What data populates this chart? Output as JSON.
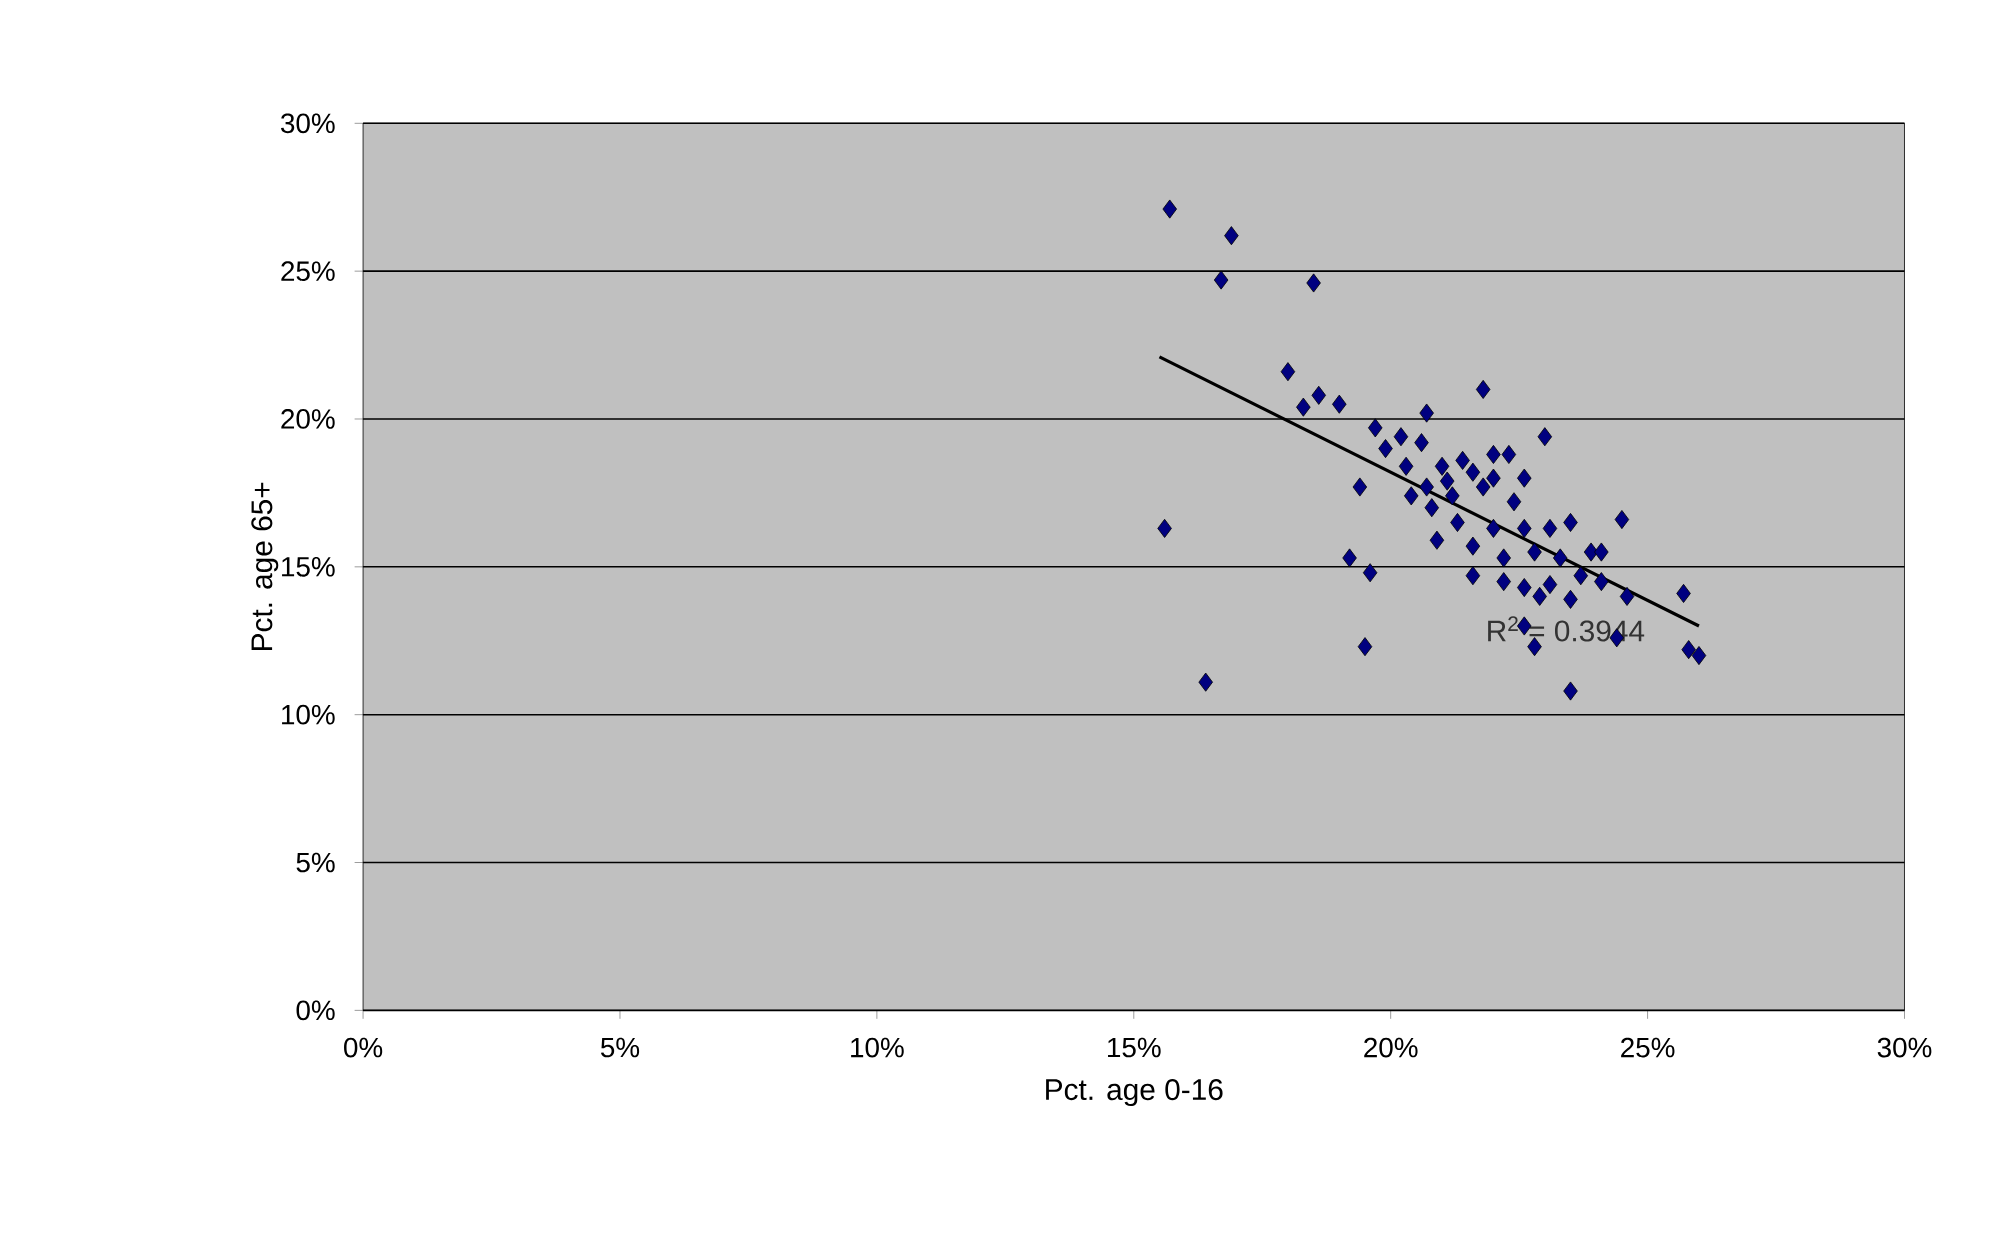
{
  "chart_data": {
    "type": "scatter",
    "xlabel": "Pct. age 0-16",
    "ylabel": "Pct. age 65+",
    "xlim": [
      0,
      30
    ],
    "ylim": [
      0,
      30
    ],
    "xticks": [
      {
        "value": 0,
        "label": "0%"
      },
      {
        "value": 5,
        "label": "5%"
      },
      {
        "value": 10,
        "label": "10%"
      },
      {
        "value": 15,
        "label": "15%"
      },
      {
        "value": 20,
        "label": "20%"
      },
      {
        "value": 25,
        "label": "25%"
      },
      {
        "value": 30,
        "label": "30%"
      }
    ],
    "yticks": [
      {
        "value": 0,
        "label": "0%"
      },
      {
        "value": 5,
        "label": "5%"
      },
      {
        "value": 10,
        "label": "10%"
      },
      {
        "value": 15,
        "label": "15%"
      },
      {
        "value": 20,
        "label": "20%"
      },
      {
        "value": 25,
        "label": "25%"
      },
      {
        "value": 30,
        "label": "30%"
      }
    ],
    "grid": "y",
    "series": [
      {
        "marker": "diamond",
        "color": "#000080",
        "x": [
          15.7,
          16.9,
          16.7,
          18.5,
          15.6,
          16.4,
          18.0,
          19.0,
          18.3,
          18.6,
          19.2,
          19.4,
          19.7,
          19.6,
          19.5,
          20.7,
          21.8,
          20.2,
          20.6,
          20.3,
          21.0,
          21.4,
          22.3,
          23.0,
          20.4,
          20.8,
          21.2,
          21.8,
          22.4,
          21.3,
          22.0,
          22.6,
          23.1,
          23.5,
          24.5,
          20.9,
          21.6,
          22.2,
          22.8,
          23.3,
          23.9,
          21.6,
          22.2,
          22.6,
          23.1,
          23.7,
          24.1,
          22.9,
          23.5,
          24.1,
          24.6,
          24.4,
          25.7,
          25.8,
          26.0,
          22.8,
          23.5,
          22.6,
          22.0,
          21.6,
          21.1,
          20.7,
          22.6,
          22.0,
          19.9
        ],
        "values": [
          27.1,
          26.2,
          24.7,
          24.6,
          16.3,
          11.1,
          21.6,
          20.5,
          20.4,
          20.8,
          15.3,
          17.7,
          19.7,
          14.8,
          12.3,
          20.2,
          21.0,
          19.4,
          19.2,
          18.4,
          18.4,
          18.6,
          18.8,
          19.4,
          17.4,
          17.0,
          17.4,
          17.7,
          17.2,
          16.5,
          16.3,
          16.3,
          16.3,
          16.5,
          16.6,
          15.9,
          15.7,
          15.3,
          15.5,
          15.3,
          15.5,
          14.7,
          14.5,
          14.3,
          14.4,
          14.7,
          14.5,
          14.0,
          13.9,
          15.5,
          14.0,
          12.6,
          14.1,
          12.2,
          12.0,
          12.3,
          10.8,
          13.0,
          18.0,
          18.2,
          17.9,
          17.7,
          18.0,
          18.8,
          19.0
        ]
      },
      {
        "type": "line",
        "marker": "none",
        "color": "#000000",
        "x": [
          15.5,
          26.0
        ],
        "values": [
          22.1,
          13.0
        ]
      }
    ],
    "annotations": [
      "R$^{2}$ = 0.3944"
    ]
  }
}
